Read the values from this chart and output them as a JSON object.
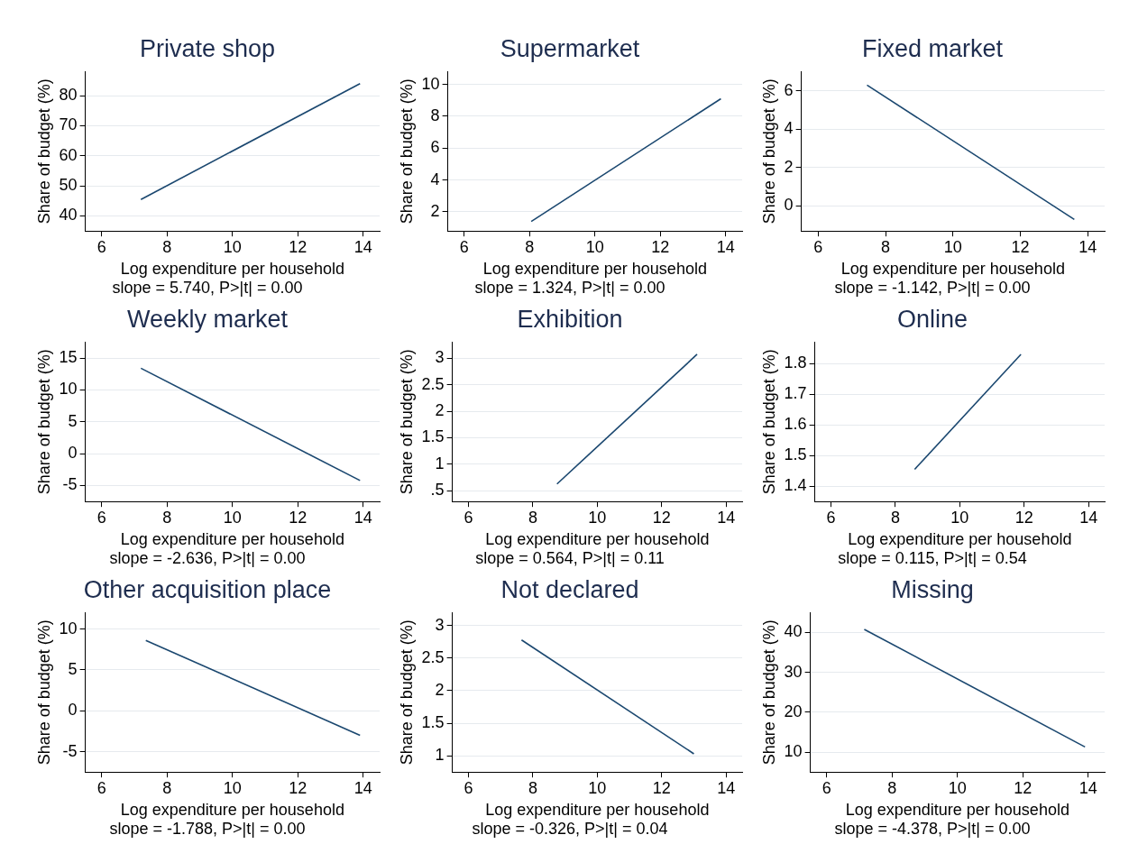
{
  "chart_data": [
    {
      "type": "line",
      "title": "Private shop",
      "xlabel": "Log expenditure per household",
      "ylabel": "Share of budget (%)",
      "annotations": [
        "slope = 5.740, P>|t| = 0.00"
      ],
      "series": [
        {
          "color": "#1a476f",
          "x": [
            7.2,
            13.9
          ],
          "values": [
            45.5,
            84
          ]
        }
      ],
      "xlim": [
        5.5,
        14.5
      ],
      "xticks": [
        6,
        8,
        10,
        12,
        14
      ],
      "ylim": [
        35,
        88
      ],
      "yticks": [
        40,
        50,
        60,
        70,
        80
      ],
      "grid": "y",
      "legend": false,
      "marker": "none",
      "line_style": "solid"
    },
    {
      "type": "line",
      "title": "Supermarket",
      "xlabel": "Log expenditure per household",
      "ylabel": "Share of budget (%)",
      "annotations": [
        "slope = 1.324, P>|t| = 0.00"
      ],
      "series": [
        {
          "color": "#1a476f",
          "x": [
            8.05,
            13.85
          ],
          "values": [
            1.4,
            9.1
          ]
        }
      ],
      "xlim": [
        5.5,
        14.5
      ],
      "xticks": [
        6,
        8,
        10,
        12,
        14
      ],
      "ylim": [
        0.8,
        10.8
      ],
      "yticks": [
        2,
        4,
        6,
        8,
        10
      ],
      "grid": "y",
      "legend": false,
      "marker": "none",
      "line_style": "solid"
    },
    {
      "type": "line",
      "title": "Fixed market",
      "xlabel": "Log expenditure per household",
      "ylabel": "Share of budget (%)",
      "annotations": [
        "slope = -1.142, P>|t| = 0.00"
      ],
      "series": [
        {
          "color": "#1a476f",
          "x": [
            7.45,
            13.6
          ],
          "values": [
            6.3,
            -0.7
          ]
        }
      ],
      "xlim": [
        5.5,
        14.5
      ],
      "xticks": [
        6,
        8,
        10,
        12,
        14
      ],
      "ylim": [
        -1.3,
        7
      ],
      "yticks": [
        0,
        2,
        4,
        6
      ],
      "grid": "y",
      "legend": false,
      "marker": "none",
      "line_style": "solid"
    },
    {
      "type": "line",
      "title": "Weekly market",
      "xlabel": "Log expenditure per household",
      "ylabel": "Share of budget (%)",
      "annotations": [
        "slope = -2.636, P>|t| = 0.00"
      ],
      "series": [
        {
          "color": "#1a476f",
          "x": [
            7.2,
            13.9
          ],
          "values": [
            13.4,
            -4.2
          ]
        }
      ],
      "xlim": [
        5.5,
        14.5
      ],
      "xticks": [
        6,
        8,
        10,
        12,
        14
      ],
      "ylim": [
        -7.5,
        17.5
      ],
      "yticks": [
        -5,
        0,
        5,
        10,
        15
      ],
      "grid": "y",
      "legend": false,
      "marker": "none",
      "line_style": "solid"
    },
    {
      "type": "line",
      "title": "Exhibition",
      "xlabel": "Log expenditure per household",
      "ylabel": "Share of budget (%)",
      "annotations": [
        "slope = 0.564, P>|t| = 0.11"
      ],
      "series": [
        {
          "color": "#1a476f",
          "x": [
            8.75,
            13.1
          ],
          "values": [
            0.63,
            3.07
          ]
        }
      ],
      "xlim": [
        5.5,
        14.5
      ],
      "xticks": [
        6,
        8,
        10,
        12,
        14
      ],
      "ylim": [
        0.3,
        3.3
      ],
      "yticks": [
        {
          "value": 0.5,
          "label": ".5"
        },
        1,
        1.5,
        2,
        2.5,
        3
      ],
      "grid": "y",
      "legend": false,
      "marker": "none",
      "line_style": "solid"
    },
    {
      "type": "line",
      "title": "Online",
      "xlabel": "Log expenditure per household",
      "ylabel": "Share of budget (%)",
      "annotations": [
        "slope = 0.115, P>|t| = 0.54"
      ],
      "series": [
        {
          "color": "#1a476f",
          "x": [
            8.6,
            11.9
          ],
          "values": [
            1.455,
            1.83
          ]
        }
      ],
      "xlim": [
        5.5,
        14.5
      ],
      "xticks": [
        6,
        8,
        10,
        12,
        14
      ],
      "ylim": [
        1.35,
        1.87
      ],
      "yticks": [
        1.4,
        1.5,
        1.6,
        1.7,
        1.8
      ],
      "grid": "y",
      "legend": false,
      "marker": "none",
      "line_style": "solid"
    },
    {
      "type": "line",
      "title": "Other acquisition place",
      "xlabel": "Log expenditure per household",
      "ylabel": "Share of budget (%)",
      "annotations": [
        "slope = -1.788, P>|t| = 0.00"
      ],
      "series": [
        {
          "color": "#1a476f",
          "x": [
            7.35,
            13.9
          ],
          "values": [
            8.6,
            -3.0
          ]
        }
      ],
      "xlim": [
        5.5,
        14.5
      ],
      "xticks": [
        6,
        8,
        10,
        12,
        14
      ],
      "ylim": [
        -7.5,
        12
      ],
      "yticks": [
        -5,
        0,
        5,
        10
      ],
      "grid": "y",
      "legend": false,
      "marker": "none",
      "line_style": "solid"
    },
    {
      "type": "line",
      "title": "Not declared",
      "xlabel": "Log expenditure per household",
      "ylabel": "Share of budget (%)",
      "annotations": [
        "slope = -0.326, P>|t| = 0.04"
      ],
      "series": [
        {
          "color": "#1a476f",
          "x": [
            7.65,
            13.0
          ],
          "values": [
            2.78,
            1.03
          ]
        }
      ],
      "xlim": [
        5.5,
        14.5
      ],
      "xticks": [
        6,
        8,
        10,
        12,
        14
      ],
      "ylim": [
        0.75,
        3.2
      ],
      "yticks": [
        1,
        1.5,
        2,
        2.5,
        3
      ],
      "grid": "y",
      "legend": false,
      "marker": "none",
      "line_style": "solid"
    },
    {
      "type": "line",
      "title": "Missing",
      "xlabel": "Log expenditure per household",
      "ylabel": "Share of budget (%)",
      "annotations": [
        "slope = -4.378, P>|t| = 0.00"
      ],
      "series": [
        {
          "color": "#1a476f",
          "x": [
            7.15,
            13.9
          ],
          "values": [
            40.8,
            11.3
          ]
        }
      ],
      "xlim": [
        5.5,
        14.5
      ],
      "xticks": [
        6,
        8,
        10,
        12,
        14
      ],
      "ylim": [
        5,
        45
      ],
      "yticks": [
        10,
        20,
        30,
        40
      ],
      "grid": "y",
      "legend": false,
      "marker": "none",
      "line_style": "solid"
    }
  ]
}
